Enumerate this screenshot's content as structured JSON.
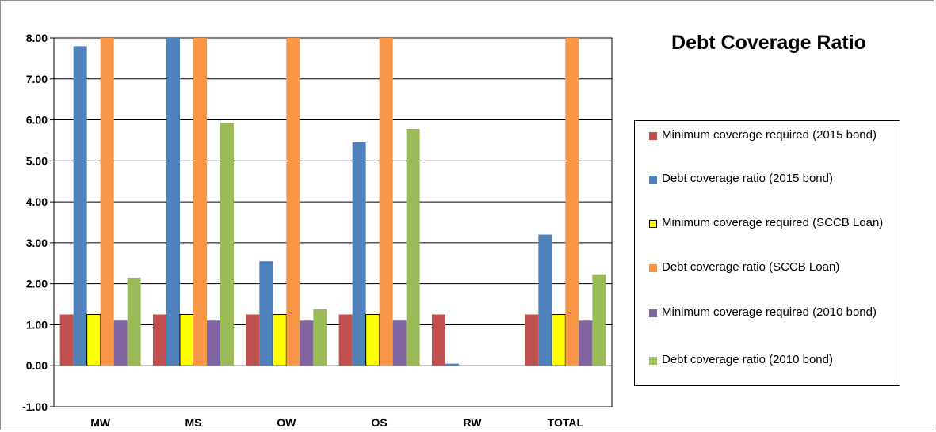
{
  "chart_data": {
    "type": "bar",
    "title": "Debt Coverage Ratio",
    "categories": [
      "MW",
      "MS",
      "OW",
      "OS",
      "RW",
      "TOTAL"
    ],
    "ylim": [
      -1,
      8
    ],
    "yticks": [
      "-1.00",
      "0.00",
      "1.00",
      "2.00",
      "3.00",
      "4.00",
      "5.00",
      "6.00",
      "7.00",
      "8.00"
    ],
    "grid": true,
    "legend_position": "right",
    "series": [
      {
        "name": "Minimum coverage required (2015 bond)",
        "color": "#c0504d",
        "values": [
          1.25,
          1.25,
          1.25,
          1.25,
          1.25,
          1.25
        ]
      },
      {
        "name": "Debt coverage ratio (2015 bond)",
        "color": "#4f81bd",
        "values": [
          7.8,
          8.0,
          2.55,
          5.45,
          0.05,
          3.2
        ]
      },
      {
        "name": "Minimum coverage required (SCCB Loan)",
        "color": "#ffff00",
        "outline": "#000000",
        "values": [
          1.25,
          1.25,
          1.25,
          1.25,
          null,
          1.25
        ]
      },
      {
        "name": "Debt coverage ratio (SCCB Loan)",
        "color": "#f79646",
        "values": [
          8.0,
          8.0,
          8.0,
          8.0,
          null,
          8.0
        ]
      },
      {
        "name": "Minimum coverage required (2010 bond)",
        "color": "#8064a2",
        "values": [
          1.1,
          1.1,
          1.1,
          1.1,
          null,
          1.1
        ]
      },
      {
        "name": "Debt coverage ratio (2010 bond)",
        "color": "#9bbb59",
        "values": [
          2.15,
          5.93,
          1.38,
          5.78,
          null,
          2.23
        ]
      }
    ]
  }
}
